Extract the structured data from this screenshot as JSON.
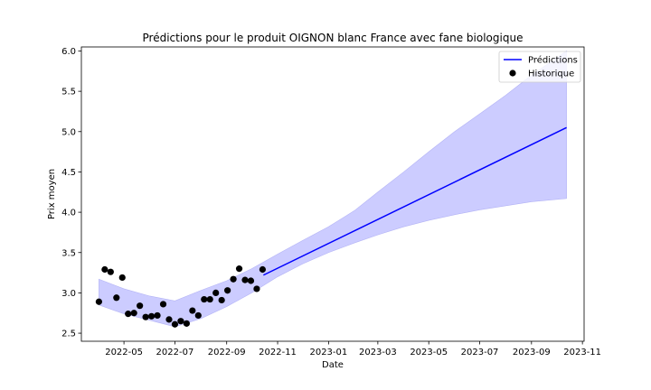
{
  "chart_data": {
    "type": "line",
    "title": "Prédictions pour le produit OIGNON blanc France avec fane biologique",
    "xlabel": "Date",
    "ylabel": "Prix moyen",
    "xlim": [
      "2022-03-11",
      "2023-11-03"
    ],
    "ylim": [
      2.4,
      6.05
    ],
    "x_ticks": [
      "2022-05",
      "2022-07",
      "2022-09",
      "2022-11",
      "2023-01",
      "2023-03",
      "2023-05",
      "2023-07",
      "2023-09",
      "2023-11"
    ],
    "y_ticks": [
      2.5,
      3.0,
      3.5,
      4.0,
      4.5,
      5.0,
      5.5,
      6.0
    ],
    "grid": false,
    "legend_position": "top-right",
    "colors": {
      "prediction": "#0000ff",
      "band": "#ccccff",
      "history": "#000000"
    },
    "series": [
      {
        "name": "Prédictions",
        "kind": "line",
        "x": [
          "2022-10-15",
          "2023-10-13"
        ],
        "y": [
          3.22,
          5.05
        ]
      },
      {
        "name": "Historique",
        "kind": "scatter",
        "x": [
          "2022-04-01",
          "2022-04-08",
          "2022-04-15",
          "2022-04-22",
          "2022-04-29",
          "2022-05-06",
          "2022-05-13",
          "2022-05-20",
          "2022-05-27",
          "2022-06-03",
          "2022-06-10",
          "2022-06-17",
          "2022-06-24",
          "2022-07-01",
          "2022-07-08",
          "2022-07-15",
          "2022-07-22",
          "2022-07-29",
          "2022-08-05",
          "2022-08-12",
          "2022-08-19",
          "2022-08-26",
          "2022-09-02",
          "2022-09-09",
          "2022-09-16",
          "2022-09-23",
          "2022-09-30",
          "2022-10-07",
          "2022-10-14"
        ],
        "y": [
          2.89,
          3.29,
          3.26,
          2.94,
          3.19,
          2.74,
          2.75,
          2.84,
          2.7,
          2.71,
          2.72,
          2.86,
          2.67,
          2.61,
          2.65,
          2.62,
          2.78,
          2.72,
          2.92,
          2.92,
          3.0,
          2.91,
          3.03,
          3.17,
          3.3,
          3.16,
          3.15,
          3.05,
          3.29
        ]
      }
    ],
    "confidence_band": {
      "x": [
        "2022-04-01",
        "2022-05-01",
        "2022-06-01",
        "2022-07-01",
        "2022-08-01",
        "2022-09-01",
        "2022-10-01",
        "2022-11-01",
        "2022-12-01",
        "2023-01-01",
        "2023-02-01",
        "2023-03-01",
        "2023-04-01",
        "2023-05-01",
        "2023-06-01",
        "2023-07-01",
        "2023-08-01",
        "2023-09-01",
        "2023-10-13"
      ],
      "upper": [
        3.17,
        3.05,
        2.96,
        2.9,
        3.03,
        3.15,
        3.3,
        3.48,
        3.65,
        3.82,
        4.02,
        4.25,
        4.5,
        4.75,
        5.0,
        5.22,
        5.45,
        5.7,
        6.0
      ],
      "lower": [
        2.85,
        2.74,
        2.66,
        2.58,
        2.68,
        2.83,
        3.0,
        3.2,
        3.36,
        3.5,
        3.62,
        3.72,
        3.82,
        3.9,
        3.97,
        4.03,
        4.08,
        4.13,
        4.17
      ]
    }
  }
}
